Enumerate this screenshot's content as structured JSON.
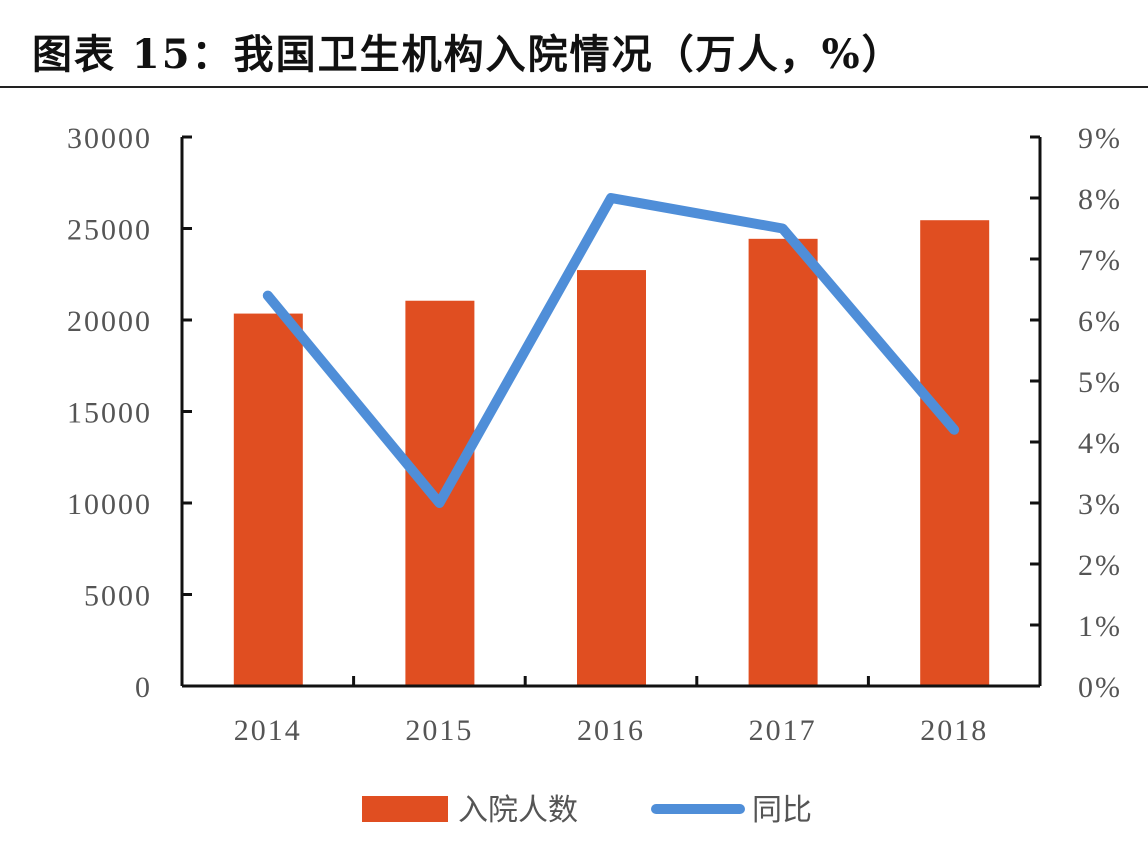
{
  "title": "图表 15：我国卫生机构入院情况（万人，%）",
  "colors": {
    "bar": "#E04E21",
    "line": "#4F8ED8",
    "axis": "#111111",
    "text": "#555555"
  },
  "chart_data": {
    "type": "bar+line",
    "title": "图表 15：我国卫生机构入院情况（万人，%）",
    "categories": [
      "2014",
      "2015",
      "2016",
      "2017",
      "2018"
    ],
    "series": [
      {
        "name": "入院人数",
        "type": "bar",
        "axis": "left",
        "values": [
          20351,
          21053,
          22728,
          24436,
          25453
        ]
      },
      {
        "name": "同比",
        "type": "line",
        "axis": "right",
        "values": [
          6.4,
          3.0,
          8.0,
          7.5,
          4.2
        ]
      }
    ],
    "left_axis": {
      "min": 0,
      "max": 30000,
      "step": 5000,
      "ticks": [
        "0",
        "5000",
        "10000",
        "15000",
        "20000",
        "25000",
        "30000"
      ]
    },
    "right_axis": {
      "min": 0,
      "max": 9,
      "step": 1,
      "ticks": [
        "0%",
        "1%",
        "2%",
        "3%",
        "4%",
        "5%",
        "6%",
        "7%",
        "8%",
        "9%"
      ]
    },
    "xlabel": "",
    "ylabel": "",
    "grid": false,
    "legend_position": "bottom"
  },
  "legend": {
    "bar_label": "入院人数",
    "line_label": "同比"
  }
}
